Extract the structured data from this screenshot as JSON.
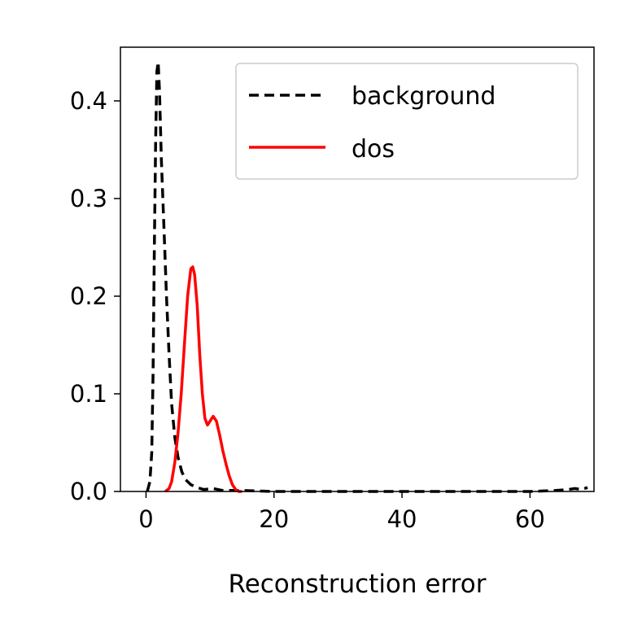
{
  "chart_data": {
    "type": "line",
    "title": "",
    "xlabel": "Reconstruction error",
    "ylabel": "",
    "xlim": [
      -4,
      70
    ],
    "ylim": [
      0,
      0.455
    ],
    "xticks": [
      0,
      20,
      40,
      60
    ],
    "xtick_labels": [
      "0",
      "20",
      "40",
      "60"
    ],
    "yticks": [
      0.0,
      0.1,
      0.2,
      0.3,
      0.4
    ],
    "ytick_labels": [
      "0.0",
      "0.1",
      "0.2",
      "0.3",
      "0.4"
    ],
    "grid": false,
    "legend": {
      "position": "top-right"
    },
    "series": [
      {
        "name": "background",
        "color": "#000000",
        "style": "dashed",
        "points": [
          [
            0.2,
            0.0
          ],
          [
            0.6,
            0.01
          ],
          [
            0.9,
            0.04
          ],
          [
            1.1,
            0.12
          ],
          [
            1.3,
            0.25
          ],
          [
            1.5,
            0.36
          ],
          [
            1.7,
            0.43
          ],
          [
            1.9,
            0.44
          ],
          [
            2.1,
            0.41
          ],
          [
            2.4,
            0.34
          ],
          [
            2.8,
            0.27
          ],
          [
            3.2,
            0.2
          ],
          [
            3.6,
            0.14
          ],
          [
            4.0,
            0.09
          ],
          [
            4.5,
            0.055
          ],
          [
            5.0,
            0.035
          ],
          [
            5.6,
            0.02
          ],
          [
            6.2,
            0.012
          ],
          [
            7.0,
            0.007
          ],
          [
            8.0,
            0.004
          ],
          [
            9.0,
            0.002
          ],
          [
            10.5,
            0.003
          ],
          [
            12.0,
            0.001
          ],
          [
            15.0,
            0.001
          ],
          [
            20.0,
            0.0
          ],
          [
            30.0,
            0.0
          ],
          [
            40.0,
            0.0
          ],
          [
            50.0,
            0.0
          ],
          [
            60.0,
            0.0
          ],
          [
            64.0,
            0.001
          ],
          [
            66.0,
            0.002
          ],
          [
            67.0,
            0.003
          ],
          [
            68.0,
            0.002
          ],
          [
            69.0,
            0.004
          ]
        ]
      },
      {
        "name": "dos",
        "color": "#ff0000",
        "style": "solid",
        "points": [
          [
            3.0,
            0.0
          ],
          [
            3.6,
            0.003
          ],
          [
            4.0,
            0.01
          ],
          [
            4.5,
            0.03
          ],
          [
            5.0,
            0.06
          ],
          [
            5.5,
            0.1
          ],
          [
            6.0,
            0.15
          ],
          [
            6.5,
            0.2
          ],
          [
            7.0,
            0.228
          ],
          [
            7.3,
            0.23
          ],
          [
            7.6,
            0.222
          ],
          [
            8.0,
            0.19
          ],
          [
            8.4,
            0.14
          ],
          [
            8.8,
            0.1
          ],
          [
            9.2,
            0.075
          ],
          [
            9.6,
            0.068
          ],
          [
            10.0,
            0.072
          ],
          [
            10.5,
            0.077
          ],
          [
            11.0,
            0.072
          ],
          [
            11.5,
            0.058
          ],
          [
            12.0,
            0.042
          ],
          [
            12.5,
            0.028
          ],
          [
            13.0,
            0.016
          ],
          [
            13.5,
            0.007
          ],
          [
            14.0,
            0.002
          ],
          [
            14.5,
            0.0
          ],
          [
            15.0,
            0.0
          ]
        ]
      }
    ]
  }
}
